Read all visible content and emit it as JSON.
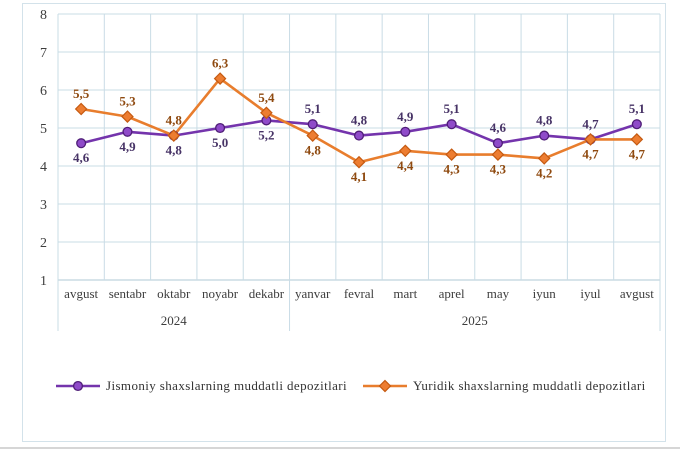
{
  "chart_data": {
    "type": "line",
    "title": "",
    "categories": [
      "avgust",
      "sentabr",
      "oktabr",
      "noyabr",
      "dekabr",
      "yanvar",
      "fevral",
      "mart",
      "aprel",
      "may",
      "iyun",
      "iyul",
      "avgust"
    ],
    "year_groups": [
      {
        "label": "2024",
        "span": [
          0,
          4
        ]
      },
      {
        "label": "2025",
        "span": [
          5,
          12
        ]
      }
    ],
    "ylim": [
      1,
      8
    ],
    "yticks": [
      1,
      2,
      3,
      4,
      5,
      6,
      7,
      8
    ],
    "grid": true,
    "legend_position": "bottom",
    "series": [
      {
        "name": "Jismoniy shaxslarning muddatli depozitlari",
        "marker": "circle",
        "color": "#7434AC",
        "marker_fill": "#8F4BC9",
        "marker_stroke": "#4F1E78",
        "label_color": "#473366",
        "values": [
          4.6,
          4.9,
          4.8,
          5.0,
          5.2,
          5.1,
          4.8,
          4.9,
          5.1,
          4.6,
          4.8,
          4.7,
          5.1
        ],
        "labels": [
          "4,6",
          "4,9",
          "4,8",
          "5,0",
          "5,2",
          "5,1",
          "4,8",
          "4,9",
          "5,1",
          "4,6",
          "4,8",
          "4,7",
          "5,1"
        ],
        "label_pos": [
          "below",
          "below",
          "below",
          "below",
          "below",
          "above",
          "above",
          "above",
          "above",
          "above",
          "above",
          "above",
          "above"
        ]
      },
      {
        "name": "Yuridik shaxslarning muddatli depozitlari",
        "marker": "diamond",
        "color": "#E87D2D",
        "marker_fill": "#ED7D31",
        "marker_stroke": "#C55A11",
        "label_color": "#8F4A10",
        "values": [
          5.5,
          5.3,
          4.8,
          6.3,
          5.4,
          4.8,
          4.1,
          4.4,
          4.3,
          4.3,
          4.2,
          4.7,
          4.7
        ],
        "labels": [
          "5,5",
          "5,3",
          "4,8",
          "6,3",
          "5,4",
          "4,8",
          "4,1",
          "4,4",
          "4,3",
          "4,3",
          "4,2",
          "4,7",
          "4,7"
        ],
        "label_pos": [
          "above",
          "above",
          "above",
          "above",
          "above",
          "below",
          "below",
          "below",
          "below",
          "below",
          "below",
          "below",
          "below"
        ]
      }
    ],
    "colors": {
      "gridline": "#C9DCE6",
      "axis_line": "#AFC9D6",
      "axis_text": "#3D3D3D",
      "frame": "#D3E2EA"
    }
  }
}
